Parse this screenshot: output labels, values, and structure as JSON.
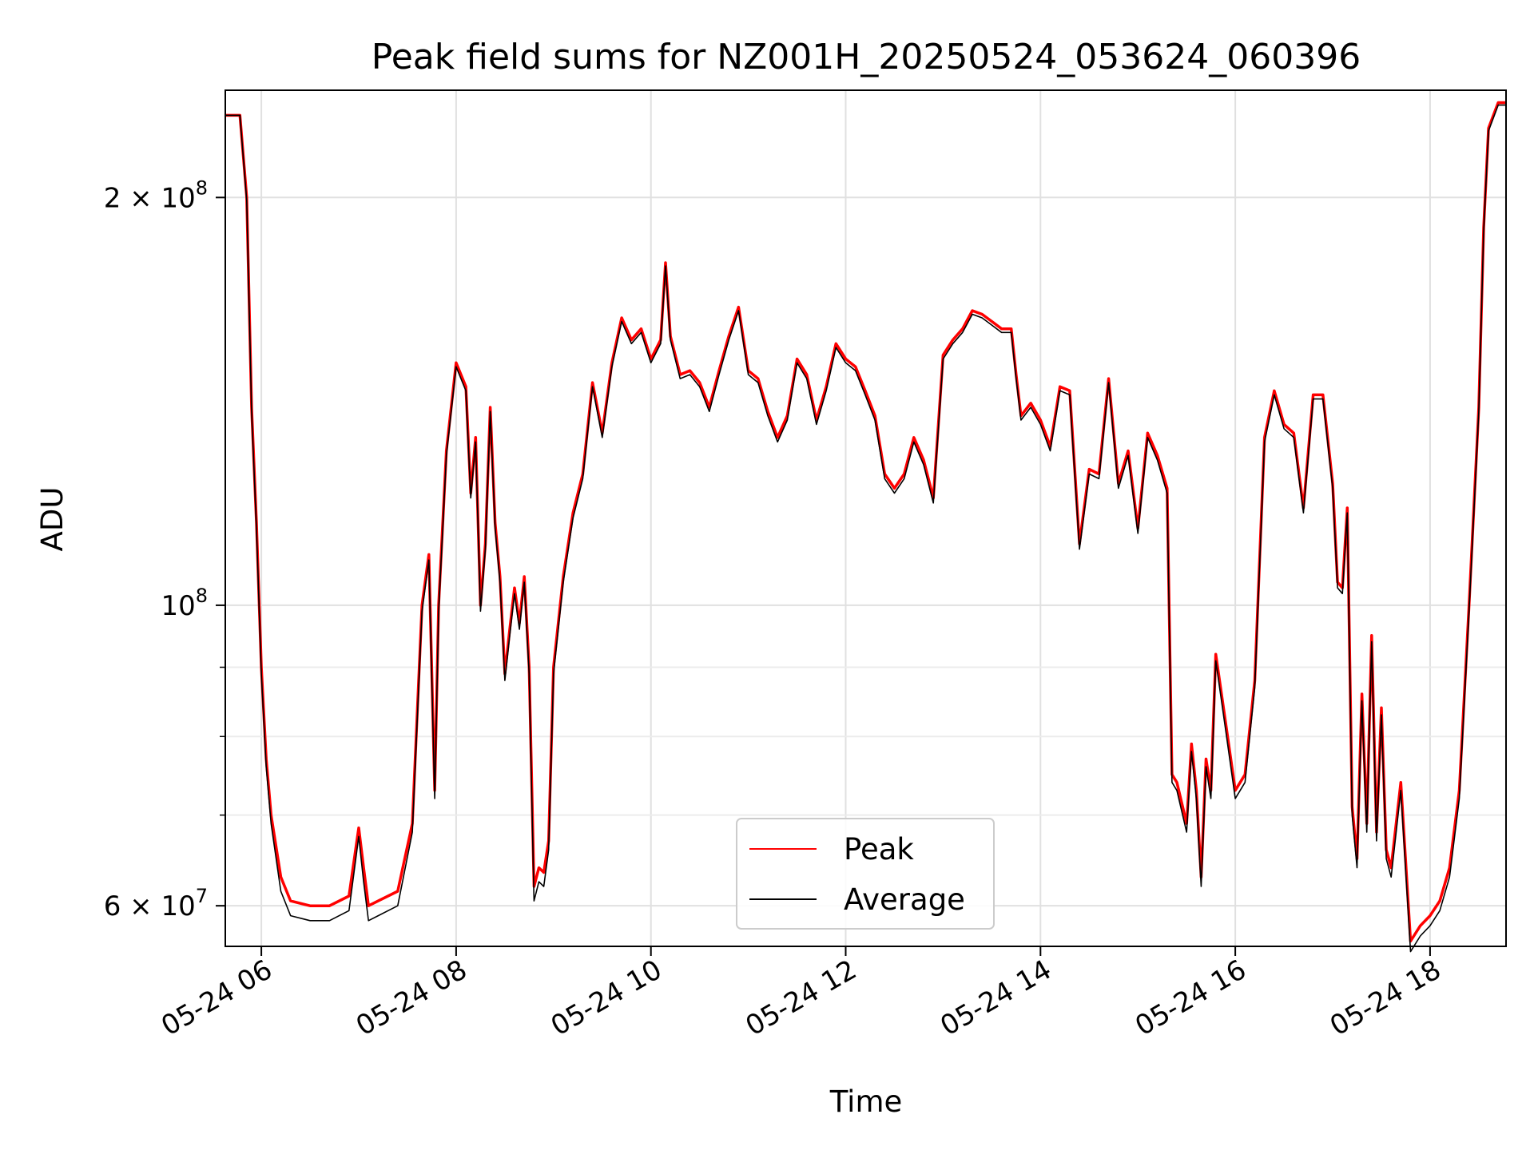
{
  "chart_data": {
    "type": "line",
    "title": "Peak field sums for NZ001H_20250524_053624_060396",
    "xlabel": "Time",
    "ylabel": "ADU",
    "x_range": [
      "05-24 05:37",
      "05-24 18:47"
    ],
    "ylim": [
      56000000,
      240000000
    ],
    "y_scale": "log",
    "grid": true,
    "legend": "bottom-center",
    "x_ticks": [
      {
        "label": "05-24 06",
        "value": 6
      },
      {
        "label": "05-24 08",
        "value": 8
      },
      {
        "label": "05-24 10",
        "value": 10
      },
      {
        "label": "05-24 12",
        "value": 12
      },
      {
        "label": "05-24 14",
        "value": 14
      },
      {
        "label": "05-24 16",
        "value": 16
      },
      {
        "label": "05-24 18",
        "value": 18
      }
    ],
    "y_major_ticks": [
      {
        "value": 60000000,
        "mantissa": "6",
        "exponent": "7"
      },
      {
        "value": 100000000,
        "mantissa": "",
        "exponent": "8"
      },
      {
        "value": 200000000,
        "mantissa": "2",
        "exponent": "8"
      }
    ],
    "y_minor_ticks": [
      70000000,
      80000000,
      90000000
    ],
    "series": [
      {
        "name": "Peak",
        "color": "#ff0000",
        "x": [
          5.63,
          5.78,
          5.85,
          5.9,
          5.95,
          6.0,
          6.05,
          6.1,
          6.2,
          6.3,
          6.5,
          6.7,
          6.9,
          7.0,
          7.05,
          7.1,
          7.2,
          7.4,
          7.55,
          7.65,
          7.72,
          7.78,
          7.82,
          7.9,
          8.0,
          8.1,
          8.15,
          8.2,
          8.25,
          8.3,
          8.35,
          8.4,
          8.45,
          8.5,
          8.55,
          8.6,
          8.65,
          8.7,
          8.75,
          8.8,
          8.85,
          8.9,
          8.95,
          9.0,
          9.1,
          9.2,
          9.3,
          9.4,
          9.5,
          9.6,
          9.7,
          9.8,
          9.9,
          10.0,
          10.1,
          10.15,
          10.2,
          10.3,
          10.4,
          10.5,
          10.6,
          10.7,
          10.8,
          10.9,
          11.0,
          11.1,
          11.2,
          11.3,
          11.4,
          11.5,
          11.6,
          11.7,
          11.8,
          11.9,
          12.0,
          12.1,
          12.2,
          12.3,
          12.4,
          12.5,
          12.6,
          12.7,
          12.8,
          12.9,
          13.0,
          13.1,
          13.2,
          13.3,
          13.4,
          13.5,
          13.6,
          13.7,
          13.75,
          13.8,
          13.9,
          14.0,
          14.1,
          14.2,
          14.3,
          14.4,
          14.5,
          14.6,
          14.7,
          14.8,
          14.9,
          15.0,
          15.1,
          15.2,
          15.3,
          15.35,
          15.4,
          15.5,
          15.55,
          15.6,
          15.65,
          15.7,
          15.75,
          15.8,
          15.9,
          16.0,
          16.1,
          16.2,
          16.3,
          16.4,
          16.5,
          16.6,
          16.7,
          16.8,
          16.9,
          17.0,
          17.05,
          17.1,
          17.15,
          17.2,
          17.25,
          17.3,
          17.35,
          17.4,
          17.45,
          17.5,
          17.55,
          17.6,
          17.7,
          17.8,
          17.9,
          18.0,
          18.1,
          18.2,
          18.3,
          18.4,
          18.5,
          18.55,
          18.6,
          18.7,
          18.78
        ],
        "y": [
          230000000,
          230000000,
          200000000,
          140000000,
          115000000,
          90000000,
          77000000,
          70000000,
          63000000,
          60500000,
          60000000,
          60000000,
          61000000,
          68500000,
          64000000,
          60000000,
          60500000,
          61500000,
          69000000,
          100000000,
          109000000,
          73000000,
          100000000,
          130000000,
          151000000,
          145000000,
          121000000,
          133000000,
          100000000,
          111000000,
          140000000,
          115000000,
          105000000,
          89000000,
          96000000,
          103000000,
          97000000,
          105000000,
          90000000,
          62000000,
          64000000,
          63500000,
          67000000,
          90000000,
          105000000,
          117000000,
          125000000,
          146000000,
          134000000,
          151000000,
          163000000,
          157000000,
          160000000,
          152000000,
          157000000,
          179000000,
          158000000,
          148000000,
          149000000,
          146000000,
          140000000,
          149000000,
          158000000,
          166000000,
          149000000,
          147000000,
          139000000,
          133000000,
          138000000,
          152000000,
          148000000,
          137000000,
          145000000,
          156000000,
          152000000,
          150000000,
          144000000,
          138000000,
          125000000,
          122000000,
          125000000,
          133000000,
          128000000,
          120000000,
          153000000,
          157000000,
          160000000,
          165000000,
          164000000,
          162000000,
          160000000,
          160000000,
          148000000,
          138000000,
          141000000,
          137000000,
          131000000,
          145000000,
          144000000,
          111000000,
          126000000,
          125000000,
          147000000,
          123000000,
          130000000,
          114000000,
          134000000,
          129000000,
          122000000,
          75000000,
          74000000,
          69000000,
          79000000,
          73000000,
          63000000,
          77000000,
          73000000,
          92000000,
          82000000,
          73000000,
          75000000,
          88000000,
          133000000,
          144000000,
          136000000,
          134000000,
          118000000,
          143000000,
          143000000,
          123000000,
          104000000,
          103000000,
          118000000,
          71000000,
          65000000,
          86000000,
          69000000,
          95000000,
          68000000,
          84000000,
          66000000,
          64000000,
          74000000,
          56500000,
          58000000,
          59000000,
          60500000,
          64000000,
          73000000,
          100000000,
          140000000,
          190000000,
          225000000,
          235000000,
          235000000
        ]
      },
      {
        "name": "Average",
        "color": "#000000",
        "x": [
          5.63,
          5.78,
          5.85,
          5.9,
          5.95,
          6.0,
          6.05,
          6.1,
          6.2,
          6.3,
          6.5,
          6.7,
          6.9,
          7.0,
          7.05,
          7.1,
          7.2,
          7.4,
          7.55,
          7.65,
          7.72,
          7.78,
          7.82,
          7.9,
          8.0,
          8.1,
          8.15,
          8.2,
          8.25,
          8.3,
          8.35,
          8.4,
          8.45,
          8.5,
          8.55,
          8.6,
          8.65,
          8.7,
          8.75,
          8.8,
          8.85,
          8.9,
          8.95,
          9.0,
          9.1,
          9.2,
          9.3,
          9.4,
          9.5,
          9.6,
          9.7,
          9.8,
          9.9,
          10.0,
          10.1,
          10.15,
          10.2,
          10.3,
          10.4,
          10.5,
          10.6,
          10.7,
          10.8,
          10.9,
          11.0,
          11.1,
          11.2,
          11.3,
          11.4,
          11.5,
          11.6,
          11.7,
          11.8,
          11.9,
          12.0,
          12.1,
          12.2,
          12.3,
          12.4,
          12.5,
          12.6,
          12.7,
          12.8,
          12.9,
          13.0,
          13.1,
          13.2,
          13.3,
          13.4,
          13.5,
          13.6,
          13.7,
          13.75,
          13.8,
          13.9,
          14.0,
          14.1,
          14.2,
          14.3,
          14.4,
          14.5,
          14.6,
          14.7,
          14.8,
          14.9,
          15.0,
          15.1,
          15.2,
          15.3,
          15.35,
          15.4,
          15.5,
          15.55,
          15.6,
          15.65,
          15.7,
          15.75,
          15.8,
          15.9,
          16.0,
          16.1,
          16.2,
          16.3,
          16.4,
          16.5,
          16.6,
          16.7,
          16.8,
          16.9,
          17.0,
          17.05,
          17.1,
          17.15,
          17.2,
          17.25,
          17.3,
          17.35,
          17.4,
          17.45,
          17.5,
          17.55,
          17.6,
          17.7,
          17.8,
          17.9,
          18.0,
          18.1,
          18.2,
          18.3,
          18.4,
          18.5,
          18.55,
          18.6,
          18.7,
          18.78
        ],
        "y": [
          230000000,
          230000000,
          199000000,
          139000000,
          114000000,
          89000000,
          76000000,
          69000000,
          61500000,
          59000000,
          58500000,
          58500000,
          59500000,
          67500000,
          62500000,
          58500000,
          59000000,
          60000000,
          68000000,
          99000000,
          108000000,
          72000000,
          99000000,
          129000000,
          150000000,
          144000000,
          120000000,
          132000000,
          99000000,
          110000000,
          139000000,
          114000000,
          104000000,
          88000000,
          95000000,
          102000000,
          96000000,
          104000000,
          89000000,
          60500000,
          62500000,
          62000000,
          66000000,
          89000000,
          104000000,
          116000000,
          124000000,
          145000000,
          133000000,
          150000000,
          162000000,
          156000000,
          159000000,
          151000000,
          156000000,
          178000000,
          157000000,
          147000000,
          148000000,
          145000000,
          139000000,
          148000000,
          157000000,
          165000000,
          148000000,
          146000000,
          138000000,
          132000000,
          137000000,
          151000000,
          147000000,
          136000000,
          144000000,
          155000000,
          151000000,
          149000000,
          143000000,
          137000000,
          124000000,
          121000000,
          124000000,
          132000000,
          127000000,
          119000000,
          152000000,
          156000000,
          159000000,
          164000000,
          163000000,
          161000000,
          159000000,
          159000000,
          147000000,
          137000000,
          140000000,
          136000000,
          130000000,
          144000000,
          143000000,
          110000000,
          125000000,
          124000000,
          146000000,
          122000000,
          129000000,
          113000000,
          133000000,
          128000000,
          121000000,
          74000000,
          73000000,
          68000000,
          78000000,
          72000000,
          62000000,
          76000000,
          72000000,
          91000000,
          81000000,
          72000000,
          74000000,
          87000000,
          132000000,
          143000000,
          135000000,
          133000000,
          117000000,
          142000000,
          142000000,
          122000000,
          103000000,
          102000000,
          117000000,
          70000000,
          64000000,
          85000000,
          68000000,
          94000000,
          67000000,
          83000000,
          65000000,
          63000000,
          73000000,
          55500000,
          57000000,
          58000000,
          59500000,
          63000000,
          72000000,
          99000000,
          139000000,
          189000000,
          224000000,
          234000000,
          234000000
        ]
      }
    ]
  }
}
